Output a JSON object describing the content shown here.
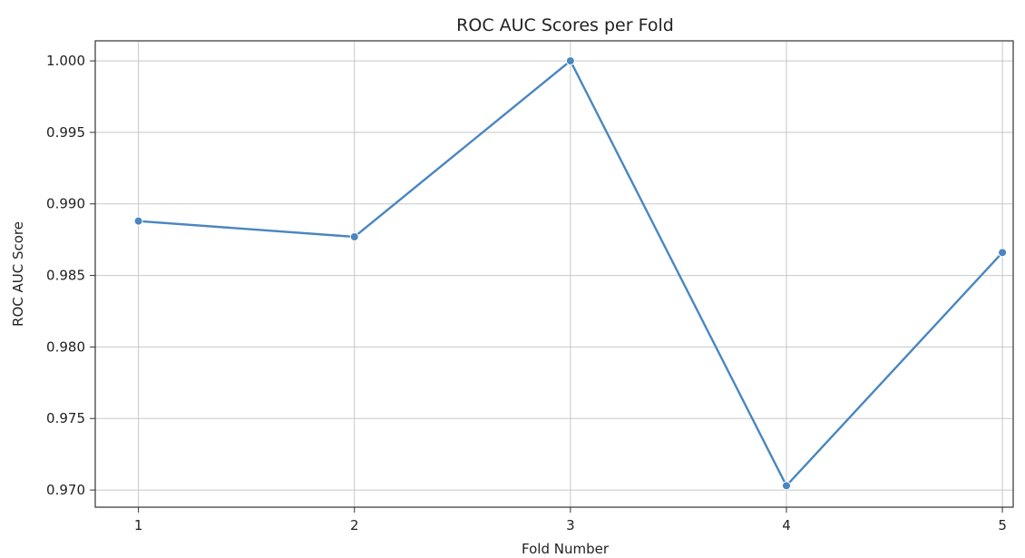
{
  "chart_data": {
    "type": "line",
    "title": "ROC AUC Scores per Fold",
    "xlabel": "Fold Number",
    "ylabel": "ROC AUC Score",
    "x": [
      1,
      2,
      3,
      4,
      5
    ],
    "x_tick_labels": [
      "1",
      "2",
      "3",
      "4",
      "5"
    ],
    "y_ticks": [
      0.97,
      0.975,
      0.98,
      0.985,
      0.99,
      0.995,
      1.0
    ],
    "y_tick_labels": [
      "0.970",
      "0.975",
      "0.980",
      "0.985",
      "0.990",
      "0.995",
      "1.000"
    ],
    "series": [
      {
        "values": [
          0.9888,
          0.9877,
          1.0,
          0.9703,
          0.9866
        ],
        "color": "#4a86c0"
      }
    ],
    "xlim": [
      0.8,
      5.05
    ],
    "ylim": [
      0.9688,
      1.0014
    ],
    "grid": true,
    "legend": "none",
    "marker": "circle"
  }
}
